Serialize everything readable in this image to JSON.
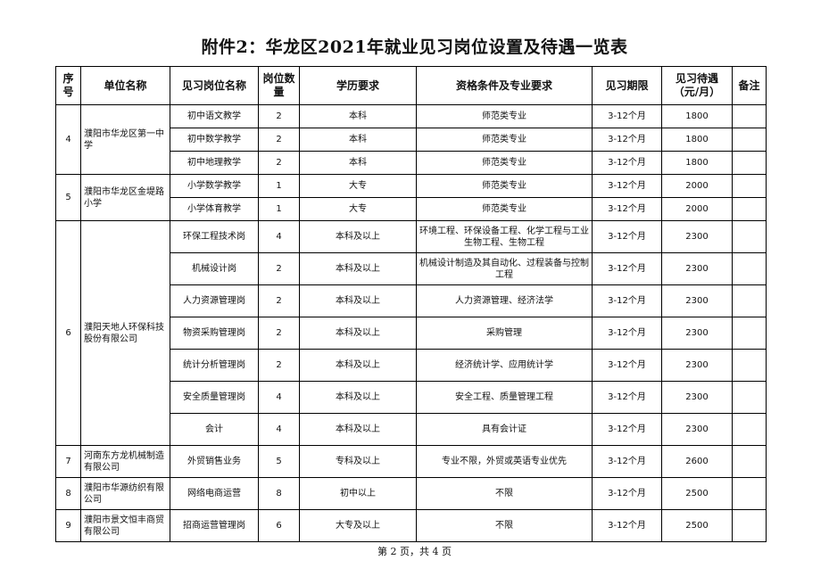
{
  "title": "附件2：华龙区2021年就业见习岗位设置及待遇一览表",
  "headers": [
    "序号",
    "单位名称",
    "见习岗位名称",
    "岗位数量",
    "学历要求",
    "资格条件及专业要求",
    "见习期限",
    "见习待遇（元/月）",
    "备注"
  ],
  "units": [
    {
      "no": "4",
      "name": "濮阳市华龙区第一中学",
      "positions": [
        {
          "title": "初中语文教学",
          "count": "2",
          "edu": "本科",
          "req": "师范类专业",
          "period": "3-12个月",
          "pay": "1800",
          "note": ""
        },
        {
          "title": "初中数学教学",
          "count": "2",
          "edu": "本科",
          "req": "师范类专业",
          "period": "3-12个月",
          "pay": "1800",
          "note": ""
        },
        {
          "title": "初中地理教学",
          "count": "2",
          "edu": "本科",
          "req": "师范类专业",
          "period": "3-12个月",
          "pay": "1800",
          "note": ""
        }
      ]
    },
    {
      "no": "5",
      "name": "濮阳市华龙区金堤路小学",
      "positions": [
        {
          "title": "小学数学教学",
          "count": "1",
          "edu": "大专",
          "req": "师范类专业",
          "period": "3-12个月",
          "pay": "2000",
          "note": ""
        },
        {
          "title": "小学体育教学",
          "count": "1",
          "edu": "大专",
          "req": "师范类专业",
          "period": "3-12个月",
          "pay": "2000",
          "note": ""
        }
      ]
    },
    {
      "no": "6",
      "name": "濮阳天地人环保科技股份有限公司",
      "positions": [
        {
          "title": "环保工程技术岗",
          "count": "4",
          "edu": "本科及以上",
          "req": "环境工程、环保设备工程、化学工程与工业生物工程、生物工程",
          "period": "3-12个月",
          "pay": "2300",
          "note": ""
        },
        {
          "title": "机械设计岗",
          "count": "2",
          "edu": "本科及以上",
          "req": "机械设计制造及其自动化、过程装备与控制工程",
          "period": "3-12个月",
          "pay": "2300",
          "note": ""
        },
        {
          "title": "人力资源管理岗",
          "count": "2",
          "edu": "本科及以上",
          "req": "人力资源管理、经济法学",
          "period": "3-12个月",
          "pay": "2300",
          "note": ""
        },
        {
          "title": "物资采购管理岗",
          "count": "2",
          "edu": "本科及以上",
          "req": "采购管理",
          "period": "3-12个月",
          "pay": "2300",
          "note": ""
        },
        {
          "title": "统计分析管理岗",
          "count": "2",
          "edu": "本科及以上",
          "req": "经济统计学、应用统计学",
          "period": "3-12个月",
          "pay": "2300",
          "note": ""
        },
        {
          "title": "安全质量管理岗",
          "count": "4",
          "edu": "本科及以上",
          "req": "安全工程、质量管理工程",
          "period": "3-12个月",
          "pay": "2300",
          "note": ""
        },
        {
          "title": "会计",
          "count": "4",
          "edu": "本科及以上",
          "req": "具有会计证",
          "period": "3-12个月",
          "pay": "2300",
          "note": ""
        }
      ]
    },
    {
      "no": "7",
      "name": "河南东方龙机械制造有限公司",
      "positions": [
        {
          "title": "外贸销售业务",
          "count": "5",
          "edu": "专科及以上",
          "req": "专业不限，外贸或英语专业优先",
          "period": "3-12个月",
          "pay": "2600",
          "note": ""
        }
      ]
    },
    {
      "no": "8",
      "name": "濮阳市华源纺织有限公司",
      "positions": [
        {
          "title": "网络电商运营",
          "count": "8",
          "edu": "初中以上",
          "req": "不限",
          "period": "3-12个月",
          "pay": "2500",
          "note": ""
        }
      ]
    },
    {
      "no": "9",
      "name": "濮阳市景文恒丰商贸有限公司",
      "positions": [
        {
          "title": "招商运营管理岗",
          "count": "6",
          "edu": "大专及以上",
          "req": "不限",
          "period": "3-12个月",
          "pay": "2500",
          "note": ""
        }
      ]
    }
  ],
  "footer": "第 2 页，共 4 页"
}
